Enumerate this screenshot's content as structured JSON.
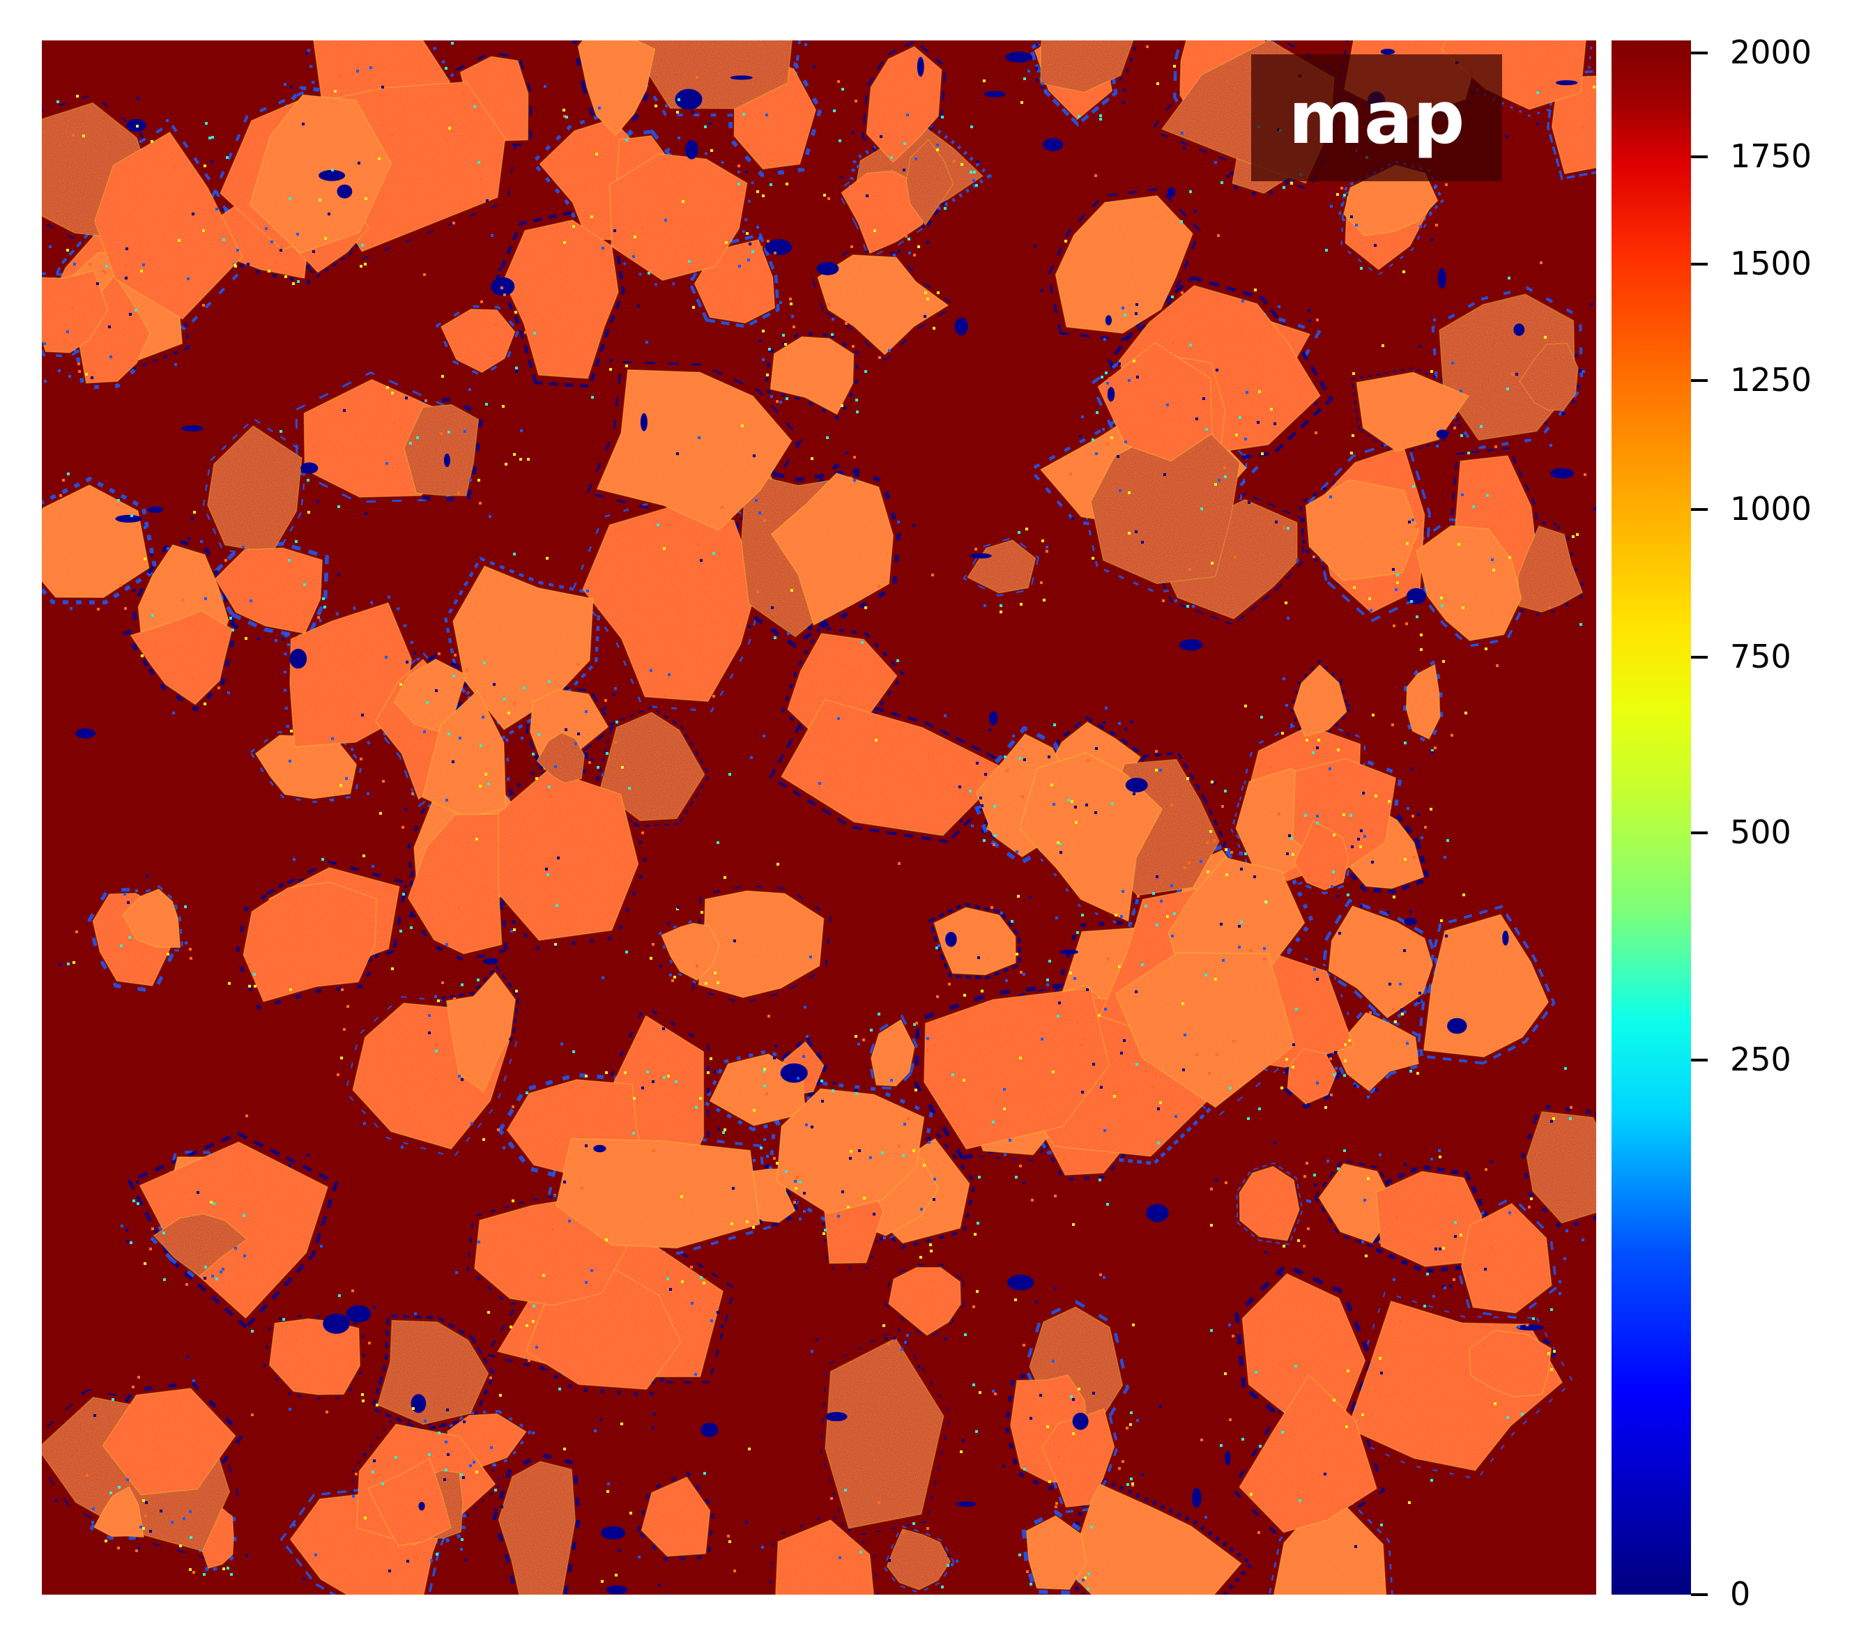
{
  "title": "map",
  "colorbar": {
    "colormap": "jet",
    "range": [
      0,
      2000
    ],
    "ticks": [
      {
        "value": 0,
        "label": "0"
      },
      {
        "value": 250,
        "label": "250"
      },
      {
        "value": 500,
        "label": "500"
      },
      {
        "value": 750,
        "label": "750"
      },
      {
        "value": 1000,
        "label": "1000"
      },
      {
        "value": 1250,
        "label": "1250"
      },
      {
        "value": 1500,
        "label": "1500"
      },
      {
        "value": 1750,
        "label": "1750"
      },
      {
        "value": 2000,
        "label": "2000"
      }
    ]
  },
  "colors": {
    "matrix": "#7f0000",
    "grain": "#ff4a14",
    "grain_light": "#ff6a20",
    "grain_dark": "#c81e08",
    "pore": "#00008f",
    "pore_edge": "#1a5cff",
    "edge_noise_cyan": "#2ef0d8",
    "edge_noise_yellow": "#f0f020"
  }
}
